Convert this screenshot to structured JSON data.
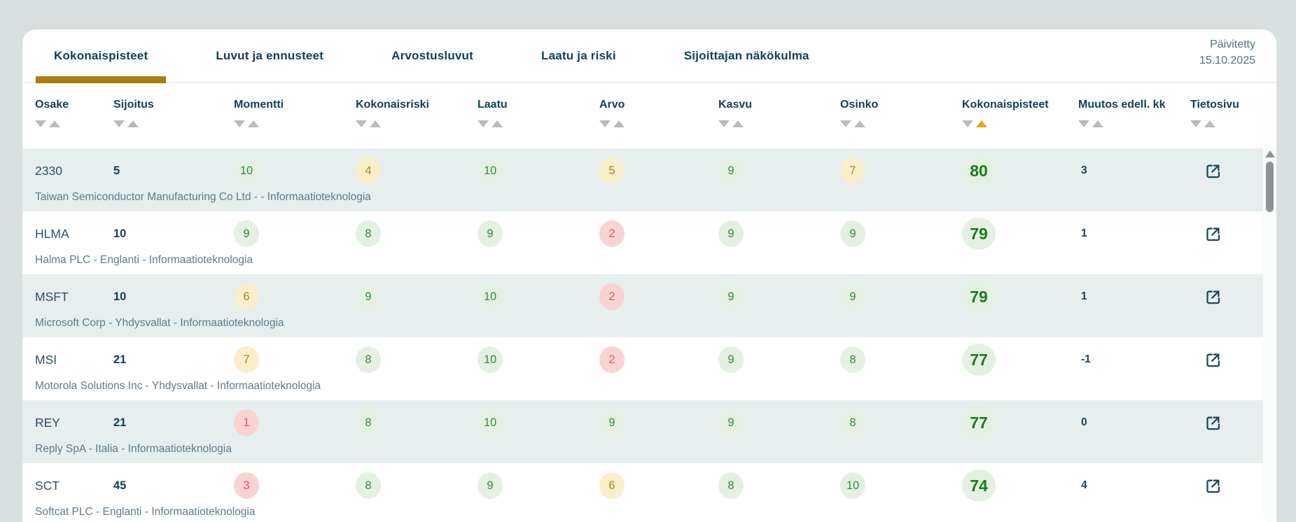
{
  "header": {
    "updated_label": "Päivitetty",
    "updated_date": "15.10.2025"
  },
  "tabs": [
    {
      "label": "Kokonaispisteet",
      "active": true
    },
    {
      "label": "Luvut ja ennusteet",
      "active": false
    },
    {
      "label": "Arvostusluvut",
      "active": false
    },
    {
      "label": "Laatu ja riski",
      "active": false
    },
    {
      "label": "Sijoittajan näkökulma",
      "active": false
    }
  ],
  "table": {
    "columns": [
      {
        "key": "osake",
        "label": "Osake",
        "sort": "none"
      },
      {
        "key": "sijoitus",
        "label": "Sijoitus",
        "sort": "none"
      },
      {
        "key": "momentti",
        "label": "Momentti",
        "sort": "none"
      },
      {
        "key": "kokonaisriski",
        "label": "Kokonaisriski",
        "sort": "none"
      },
      {
        "key": "laatu",
        "label": "Laatu",
        "sort": "none"
      },
      {
        "key": "arvo",
        "label": "Arvo",
        "sort": "none"
      },
      {
        "key": "kasvu",
        "label": "Kasvu",
        "sort": "none"
      },
      {
        "key": "osinko",
        "label": "Osinko",
        "sort": "none"
      },
      {
        "key": "kokonaispisteet",
        "label": "Kokonaispisteet",
        "sort": "asc"
      },
      {
        "key": "muutos",
        "label": "Muutos edell. kk",
        "sort": "none"
      },
      {
        "key": "tietosivu",
        "label": "Tietosivu",
        "sort": "none"
      }
    ],
    "rows": [
      {
        "ticker": "2330",
        "sijoitus": "5",
        "momentti": {
          "value": 10,
          "tone": "green"
        },
        "kokonaisriski": {
          "value": 4,
          "tone": "amber"
        },
        "laatu": {
          "value": 10,
          "tone": "green"
        },
        "arvo": {
          "value": 5,
          "tone": "amber"
        },
        "kasvu": {
          "value": 9,
          "tone": "green"
        },
        "osinko": {
          "value": 7,
          "tone": "amber"
        },
        "kokonaispisteet": 80,
        "muutos": "3",
        "company": "Taiwan Semiconductor Manufacturing Co Ltd - - Informaatioteknologia"
      },
      {
        "ticker": "HLMA",
        "sijoitus": "10",
        "momentti": {
          "value": 9,
          "tone": "green"
        },
        "kokonaisriski": {
          "value": 8,
          "tone": "green"
        },
        "laatu": {
          "value": 9,
          "tone": "green"
        },
        "arvo": {
          "value": 2,
          "tone": "red"
        },
        "kasvu": {
          "value": 9,
          "tone": "green"
        },
        "osinko": {
          "value": 9,
          "tone": "green"
        },
        "kokonaispisteet": 79,
        "muutos": "1",
        "company": "Halma PLC - Englanti - Informaatioteknologia"
      },
      {
        "ticker": "MSFT",
        "sijoitus": "10",
        "momentti": {
          "value": 6,
          "tone": "amber"
        },
        "kokonaisriski": {
          "value": 9,
          "tone": "green"
        },
        "laatu": {
          "value": 10,
          "tone": "green"
        },
        "arvo": {
          "value": 2,
          "tone": "red"
        },
        "kasvu": {
          "value": 9,
          "tone": "green"
        },
        "osinko": {
          "value": 9,
          "tone": "green"
        },
        "kokonaispisteet": 79,
        "muutos": "1",
        "company": "Microsoft Corp - Yhdysvallat - Informaatioteknologia"
      },
      {
        "ticker": "MSI",
        "sijoitus": "21",
        "momentti": {
          "value": 7,
          "tone": "amber"
        },
        "kokonaisriski": {
          "value": 8,
          "tone": "green"
        },
        "laatu": {
          "value": 10,
          "tone": "green"
        },
        "arvo": {
          "value": 2,
          "tone": "red"
        },
        "kasvu": {
          "value": 9,
          "tone": "green"
        },
        "osinko": {
          "value": 8,
          "tone": "green"
        },
        "kokonaispisteet": 77,
        "muutos": "-1",
        "company": "Motorola Solutions Inc - Yhdysvallat - Informaatioteknologia"
      },
      {
        "ticker": "REY",
        "sijoitus": "21",
        "momentti": {
          "value": 1,
          "tone": "red"
        },
        "kokonaisriski": {
          "value": 8,
          "tone": "green"
        },
        "laatu": {
          "value": 10,
          "tone": "green"
        },
        "arvo": {
          "value": 9,
          "tone": "green"
        },
        "kasvu": {
          "value": 9,
          "tone": "green"
        },
        "osinko": {
          "value": 8,
          "tone": "green"
        },
        "kokonaispisteet": 77,
        "muutos": "0",
        "company": "Reply SpA - Italia - Informaatioteknologia"
      },
      {
        "ticker": "SCT",
        "sijoitus": "45",
        "momentti": {
          "value": 3,
          "tone": "red"
        },
        "kokonaisriski": {
          "value": 8,
          "tone": "green"
        },
        "laatu": {
          "value": 9,
          "tone": "green"
        },
        "arvo": {
          "value": 6,
          "tone": "amber"
        },
        "kasvu": {
          "value": 8,
          "tone": "green"
        },
        "osinko": {
          "value": 10,
          "tone": "green"
        },
        "kokonaispisteet": 74,
        "muutos": "4",
        "company": "Softcat PLC - Englanti - Informaatioteknologia"
      }
    ]
  },
  "icons": {
    "tietosivu": "external-link-icon",
    "sort_asc": "triangle-up-icon",
    "sort_desc": "triangle-down-icon",
    "scrollbar_up": "triangle-up-icon"
  },
  "colors": {
    "page_bg": "#d9dfdf",
    "tab_text": "#123f57",
    "gold": "#a87e12",
    "sort_active": "#f0a21a",
    "sort_inactive": "#b7bcc0",
    "stripe": "#e7eeee",
    "green_bg": "#e4f1e2",
    "green_text": "#2e8f3a",
    "amber_bg": "#faeecb",
    "amber_text": "#a8861c",
    "red_bg": "#f9d2d2",
    "red_text": "#e25c5c",
    "score_text": "#1a7d1a",
    "ticker_text": "#2b4f63",
    "rank_text": "#103f55",
    "subtitle_text": "#5e7b8a",
    "muutos_text": "#16455b",
    "link_icon": "#174a5e",
    "updated_text": "#54707f",
    "scrollbar_thumb": "#8d9297"
  }
}
